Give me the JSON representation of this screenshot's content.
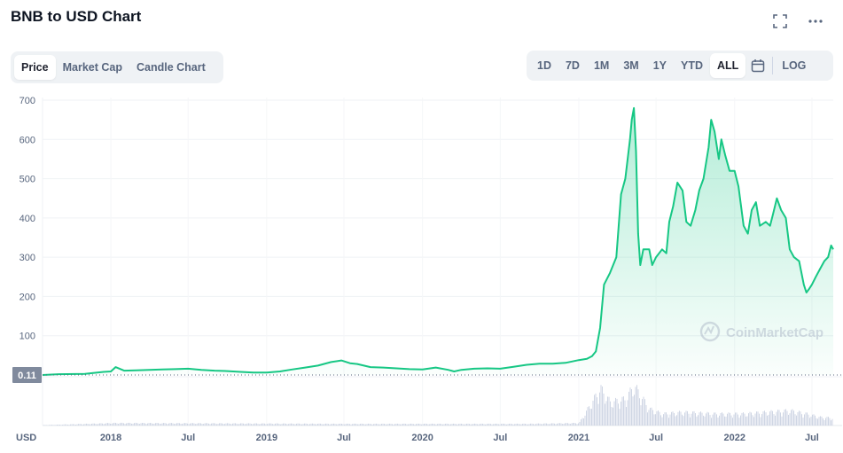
{
  "header": {
    "title": "BNB to USD Chart",
    "icons": [
      "fullscreen-icon",
      "more-icon"
    ]
  },
  "chart_tabs": [
    "Price",
    "Market Cap",
    "Candle Chart"
  ],
  "active_chart_tab": "Price",
  "time_ranges": [
    "1D",
    "7D",
    "1M",
    "3M",
    "1Y",
    "YTD",
    "ALL"
  ],
  "active_time_range": "ALL",
  "log_label": "LOG",
  "currency_label": "USD",
  "watermark": "CoinMarketCap",
  "colors": {
    "line": "#16c784",
    "fill_top": "#16c784",
    "label_bg": "#808a9d",
    "volume": "#cfd6e4"
  },
  "chart_data": {
    "type": "area",
    "xlabel": "",
    "ylabel": "",
    "ylim": [
      0,
      700
    ],
    "y_ticks": [
      100,
      200,
      300,
      400,
      500,
      600,
      700
    ],
    "x_ticks": [
      "2018",
      "Jul",
      "2019",
      "Jul",
      "2020",
      "Jul",
      "2021",
      "Jul",
      "2022",
      "Jul"
    ],
    "x_tick_dates": [
      "2018-01",
      "2018-07",
      "2019-01",
      "2019-07",
      "2020-01",
      "2020-07",
      "2021-01",
      "2021-07",
      "2022-01",
      "2022-07"
    ],
    "x_range": [
      "2017-07-25",
      "2022-08-20"
    ],
    "reference_label": "0.11",
    "reference_value": 0.11,
    "grid": true,
    "series": [
      {
        "x": [
          "2017-07-25",
          "2017-09-01",
          "2017-11-01",
          "2017-12-15",
          "2018-01-01",
          "2018-01-12",
          "2018-02-01",
          "2018-03-01",
          "2018-04-01",
          "2018-05-01",
          "2018-06-01",
          "2018-07-01",
          "2018-08-01",
          "2018-09-01",
          "2018-10-01",
          "2018-11-01",
          "2018-12-01",
          "2019-01-01",
          "2019-02-01",
          "2019-03-01",
          "2019-04-01",
          "2019-05-01",
          "2019-06-01",
          "2019-06-25",
          "2019-07-15",
          "2019-08-01",
          "2019-09-01",
          "2019-10-01",
          "2019-11-01",
          "2019-12-01",
          "2020-01-01",
          "2020-02-01",
          "2020-03-01",
          "2020-03-15",
          "2020-04-01",
          "2020-05-01",
          "2020-06-01",
          "2020-07-01",
          "2020-08-01",
          "2020-09-01",
          "2020-10-01",
          "2020-11-01",
          "2020-12-01",
          "2021-01-01",
          "2021-01-20",
          "2021-02-01",
          "2021-02-10",
          "2021-02-20",
          "2021-03-01",
          "2021-03-15",
          "2021-03-30",
          "2021-04-10",
          "2021-04-20",
          "2021-05-01",
          "2021-05-05",
          "2021-05-10",
          "2021-05-15",
          "2021-05-20",
          "2021-05-25",
          "2021-06-01",
          "2021-06-15",
          "2021-06-22",
          "2021-07-01",
          "2021-07-15",
          "2021-07-25",
          "2021-08-01",
          "2021-08-10",
          "2021-08-20",
          "2021-09-01",
          "2021-09-10",
          "2021-09-20",
          "2021-10-01",
          "2021-10-10",
          "2021-10-20",
          "2021-11-01",
          "2021-11-07",
          "2021-11-15",
          "2021-11-25",
          "2021-12-01",
          "2021-12-10",
          "2021-12-20",
          "2022-01-01",
          "2022-01-10",
          "2022-01-22",
          "2022-02-01",
          "2022-02-10",
          "2022-02-20",
          "2022-03-01",
          "2022-03-15",
          "2022-03-25",
          "2022-04-01",
          "2022-04-10",
          "2022-04-20",
          "2022-05-01",
          "2022-05-10",
          "2022-05-20",
          "2022-06-01",
          "2022-06-12",
          "2022-06-18",
          "2022-06-25",
          "2022-07-01",
          "2022-07-10",
          "2022-07-20",
          "2022-07-30",
          "2022-08-08",
          "2022-08-15",
          "2022-08-20"
        ],
        "values": [
          0.11,
          2,
          3,
          8,
          9,
          20,
          11,
          12,
          13,
          14,
          15,
          16,
          13,
          11,
          10,
          8,
          6,
          6,
          9,
          14,
          19,
          24,
          33,
          37,
          30,
          28,
          20,
          19,
          17,
          15,
          14,
          19,
          13,
          9,
          13,
          16,
          17,
          16,
          21,
          26,
          29,
          29,
          31,
          38,
          41,
          48,
          60,
          120,
          230,
          260,
          300,
          460,
          500,
          600,
          650,
          680,
          570,
          360,
          280,
          320,
          320,
          280,
          300,
          320,
          310,
          390,
          430,
          490,
          470,
          390,
          380,
          420,
          470,
          500,
          580,
          650,
          620,
          550,
          600,
          560,
          520,
          520,
          480,
          380,
          360,
          420,
          440,
          380,
          390,
          380,
          410,
          450,
          420,
          400,
          320,
          300,
          290,
          230,
          210,
          220,
          230,
          250,
          270,
          290,
          300,
          330,
          320
        ]
      }
    ],
    "volume": {
      "x": [
        "2017-07-25",
        "2018-01-12",
        "2019-06-25",
        "2020-03-15",
        "2020-09-01",
        "2021-01-01",
        "2021-02-20",
        "2021-03-15",
        "2021-04-20",
        "2021-05-10",
        "2021-05-20",
        "2021-06-15",
        "2021-07-15",
        "2021-09-01",
        "2021-11-15",
        "2022-01-22",
        "2022-05-10",
        "2022-06-18",
        "2022-07-20",
        "2022-08-20"
      ],
      "values": [
        0.5,
        3,
        2,
        2,
        2,
        3,
        45,
        28,
        32,
        48,
        40,
        20,
        14,
        16,
        14,
        14,
        18,
        14,
        10,
        9
      ]
    }
  }
}
